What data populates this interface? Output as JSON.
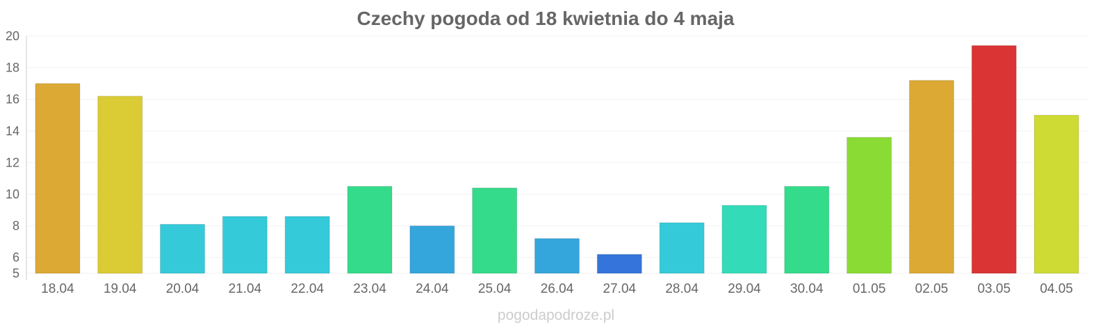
{
  "chart_data": {
    "type": "bar",
    "title": "Czechy pogoda od 18 kwietnia do 4 maja",
    "xlabel": "",
    "ylabel": "",
    "ylim": [
      5,
      20
    ],
    "yticks": [
      5,
      6,
      8,
      10,
      12,
      14,
      16,
      18,
      20
    ],
    "grid": true,
    "categories": [
      "18.04",
      "19.04",
      "20.04",
      "21.04",
      "22.04",
      "23.04",
      "24.04",
      "25.04",
      "26.04",
      "27.04",
      "28.04",
      "29.04",
      "30.04",
      "01.05",
      "02.05",
      "03.05",
      "04.05"
    ],
    "values": [
      17.0,
      16.2,
      8.1,
      8.6,
      8.6,
      10.5,
      8.0,
      10.4,
      7.2,
      6.2,
      8.2,
      9.3,
      10.5,
      13.6,
      17.2,
      19.4,
      15.0
    ],
    "colors": [
      "#dba934",
      "#dbcb34",
      "#34cad9",
      "#34cad9",
      "#34cad9",
      "#34db8b",
      "#34a6db",
      "#34db8b",
      "#34a6db",
      "#3474db",
      "#34cad9",
      "#34dbb9",
      "#34db8b",
      "#8adb34",
      "#dba934",
      "#db3434",
      "#cddb34"
    ]
  },
  "credit": "pogodapodroze.pl"
}
